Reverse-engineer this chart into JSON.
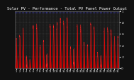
{
  "title": "Solar PV - Performance - Total PV Panel Power Output",
  "bg_color": "#111111",
  "plot_bg_color": "#1a1a1a",
  "grid_color": "#555555",
  "fill_color": "#cc0000",
  "line_color": "#ff2222",
  "blue_line_color": "#4444ff",
  "orange_color": "#ff8800",
  "ylim": [
    0,
    1.0
  ],
  "num_days": 31,
  "points_per_day": 144,
  "title_fontsize": 4.0,
  "tick_fontsize": 3.0
}
